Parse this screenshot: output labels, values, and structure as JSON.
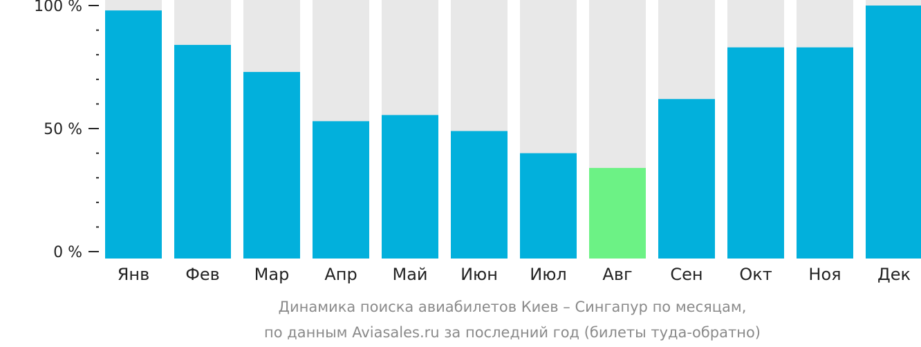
{
  "chart_data": {
    "type": "bar",
    "categories": [
      "Янв",
      "Фев",
      "Мар",
      "Апр",
      "Май",
      "Июн",
      "Июл",
      "Авг",
      "Сен",
      "Окт",
      "Ноя",
      "Дек"
    ],
    "values": [
      98,
      84,
      73,
      53,
      55.5,
      49,
      40,
      34,
      62,
      83,
      83,
      100
    ],
    "highlight_index": 7,
    "ylim": [
      0,
      100
    ],
    "y_ticks": [
      {
        "value": 0,
        "label": "0 %"
      },
      {
        "value": 50,
        "label": "50 %"
      },
      {
        "value": 100,
        "label": "100 %"
      }
    ],
    "y_minor_step": 10,
    "caption": [
      "Динамика поиска авиабилетов Киев – Сингапур по месяцам,",
      "по данным Aviasales.ru за последний год (билеты туда-обратно)"
    ],
    "colors": {
      "bar": "#02b0dc",
      "highlight": "#6cf285",
      "background_bar": "#e8e8e8",
      "axis": "#222222"
    }
  }
}
